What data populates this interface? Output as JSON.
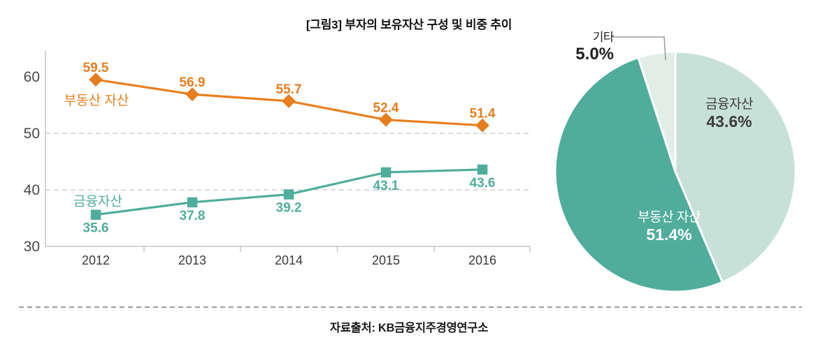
{
  "title": "[그림3] 부자의 보유자산 구성 및 비중 추이",
  "source": "자료출처: KB금융지주경영연구소",
  "colors": {
    "real_estate_orange": "#E87E1E",
    "financial_teal": "#50AD9C",
    "pie_mint": "#C8E1D8",
    "pie_pale_mint": "#E1EEE8",
    "axis_line": "#C6C6C6",
    "gridline": "#CFCFCF",
    "y_tick_label": "#4A4A4A",
    "x_tick_label": "#3A3A3A",
    "leader_line": "#999999"
  },
  "chart_data": [
    {
      "type": "line",
      "x": [
        "2012",
        "2013",
        "2014",
        "2015",
        "2016"
      ],
      "series": [
        {
          "name": "부동산 자산",
          "values": [
            59.5,
            56.9,
            55.7,
            52.4,
            51.4
          ],
          "color": "#E87E1E",
          "marker": "diamond",
          "value_label_position": "above"
        },
        {
          "name": "금융자산",
          "values": [
            35.6,
            37.8,
            39.2,
            43.1,
            43.6
          ],
          "color": "#50AD9C",
          "marker": "square",
          "value_label_position": "below"
        }
      ],
      "ylim": [
        30,
        65
      ],
      "yticks": [
        30,
        40,
        50,
        60
      ],
      "gridlines": [
        40,
        50
      ],
      "grid": "dashed-horizontal",
      "legend": "inline-series-name-labels",
      "xlabel": "",
      "ylabel": ""
    },
    {
      "type": "pie",
      "start_angle_deg": 0,
      "direction": "clockwise",
      "slices": [
        {
          "label": "금융자산",
          "value": 43.6,
          "display": "43.6%",
          "color": "#C8E1D8",
          "text_color": "#3C3C3C",
          "label_placement": "inside"
        },
        {
          "label": "부동산 자산",
          "value": 51.4,
          "display": "51.4%",
          "color": "#50AD9C",
          "text_color": "#FFFFFF",
          "label_placement": "inside"
        },
        {
          "label": "기타",
          "value": 5.0,
          "display": "5.0%",
          "color": "#E1EEE8",
          "text_color": "#1F1F1F",
          "label_placement": "outside-callout"
        }
      ]
    }
  ]
}
